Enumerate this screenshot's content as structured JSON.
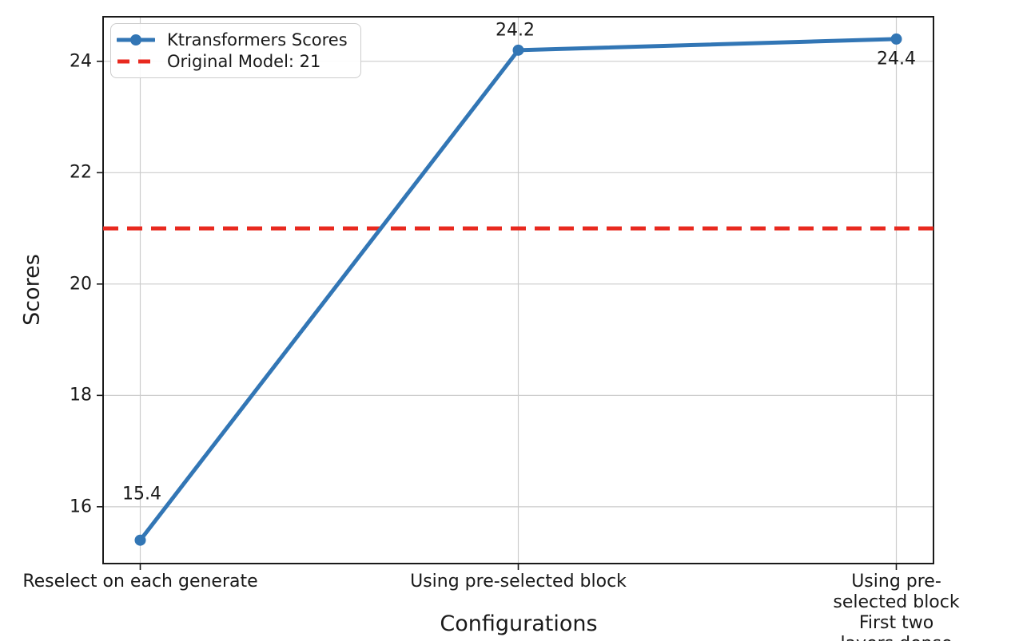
{
  "figure": {
    "background": "#ffffff",
    "text_color": "#1a1a1a"
  },
  "chart_data": {
    "type": "line",
    "title": "",
    "xlabel": "Configurations",
    "ylabel": "Scores",
    "categories": [
      "Reselect on each generate",
      "Using pre-selected block",
      "Using pre-selected block\nFirst two layers dense"
    ],
    "series": [
      {
        "name": "Ktransformers Scores",
        "values": [
          15.4,
          24.2,
          24.4
        ],
        "color": "#3276b5",
        "marker": "circle",
        "line_style": "solid"
      }
    ],
    "reference_line": {
      "name": "Original Model: 21",
      "value": 21,
      "color": "#e8291f",
      "line_style": "dashed"
    },
    "point_labels": [
      "15.4",
      "24.2",
      "24.4"
    ],
    "yticks": [
      16,
      18,
      20,
      22,
      24
    ],
    "ylim": [
      14.98,
      24.8
    ],
    "grid": true,
    "grid_color": "#cccccc",
    "axis_color": "#1a1a1a",
    "legend": {
      "position": "upper left",
      "entries": [
        "Ktransformers Scores",
        "Original Model: 21"
      ]
    }
  }
}
